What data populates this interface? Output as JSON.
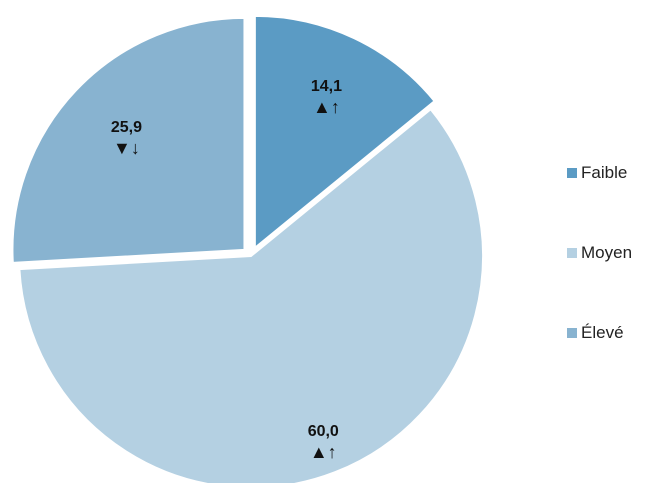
{
  "chart_data": {
    "type": "pie",
    "title": "",
    "categories": [
      "Faible",
      "Moyen",
      "Élevé"
    ],
    "values": [
      14.1,
      60.0,
      25.9
    ],
    "value_labels": [
      "14,1",
      "60,0",
      "25,9"
    ],
    "trend_indicators": [
      "▲↑",
      "▲↑",
      "▼↓"
    ],
    "colors": [
      "#5b9bc4",
      "#b4d0e2",
      "#88b3d0"
    ],
    "exploded": [
      true,
      false,
      true
    ],
    "legend_position": "right",
    "start_angle": "12 o'clock, clockwise"
  }
}
